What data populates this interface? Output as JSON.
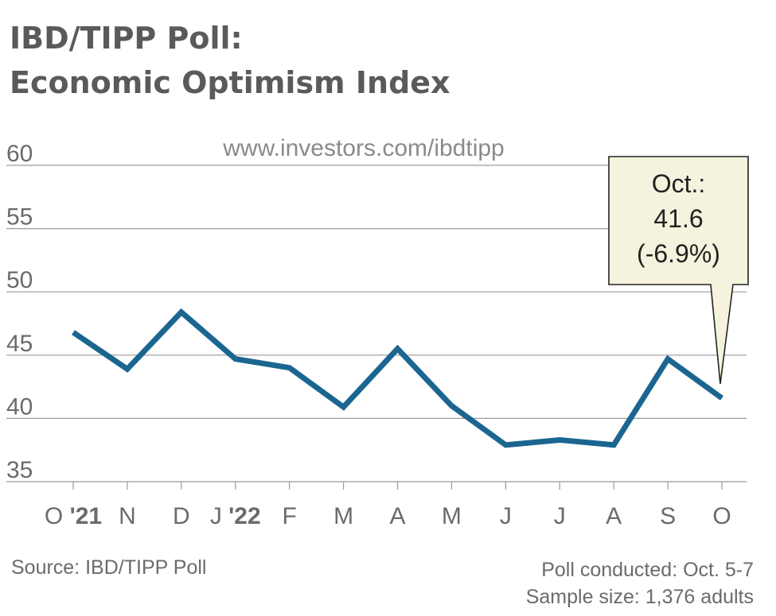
{
  "title_line1": "IBD/TIPP Poll:",
  "title_line2": "Economic Optimism Index",
  "url": "www.investors.com/ibdtipp",
  "source": "Source: IBD/TIPP Poll",
  "poll_conducted": "Poll conducted: Oct. 5-7",
  "sample_size": "Sample size: 1,376 adults",
  "colors": {
    "line": "#1b6690",
    "grid": "#9a9a9a",
    "callout_bg": "#f5f3dd"
  },
  "chart_data": {
    "type": "line",
    "categories": [
      "O '21",
      "N",
      "D",
      "J '22",
      "F",
      "M",
      "A",
      "M",
      "J",
      "J",
      "A",
      "S",
      "O"
    ],
    "x_tick_labels": [
      [
        {
          "text": "O "
        },
        {
          "text": "'21",
          "bold": true
        }
      ],
      [
        {
          "text": "N"
        }
      ],
      [
        {
          "text": "D"
        }
      ],
      [
        {
          "text": "J "
        },
        {
          "text": "'22",
          "bold": true
        }
      ],
      [
        {
          "text": "F"
        }
      ],
      [
        {
          "text": "M"
        }
      ],
      [
        {
          "text": "A"
        }
      ],
      [
        {
          "text": "M"
        }
      ],
      [
        {
          "text": "J"
        }
      ],
      [
        {
          "text": "J"
        }
      ],
      [
        {
          "text": "A"
        }
      ],
      [
        {
          "text": "S"
        }
      ],
      [
        {
          "text": "O"
        }
      ]
    ],
    "series": [
      {
        "values": [
          46.8,
          43.9,
          48.4,
          44.7,
          44.0,
          40.9,
          45.5,
          41.0,
          37.9,
          38.3,
          37.9,
          44.7,
          41.6
        ]
      }
    ],
    "y_ticks": [
      60,
      55,
      50,
      45,
      40,
      35
    ],
    "ylim": [
      35,
      60
    ],
    "grid": true,
    "annotation": {
      "lines": [
        "Oct.:",
        "41.6",
        "(-6.9%)"
      ],
      "target_index": 12
    }
  }
}
